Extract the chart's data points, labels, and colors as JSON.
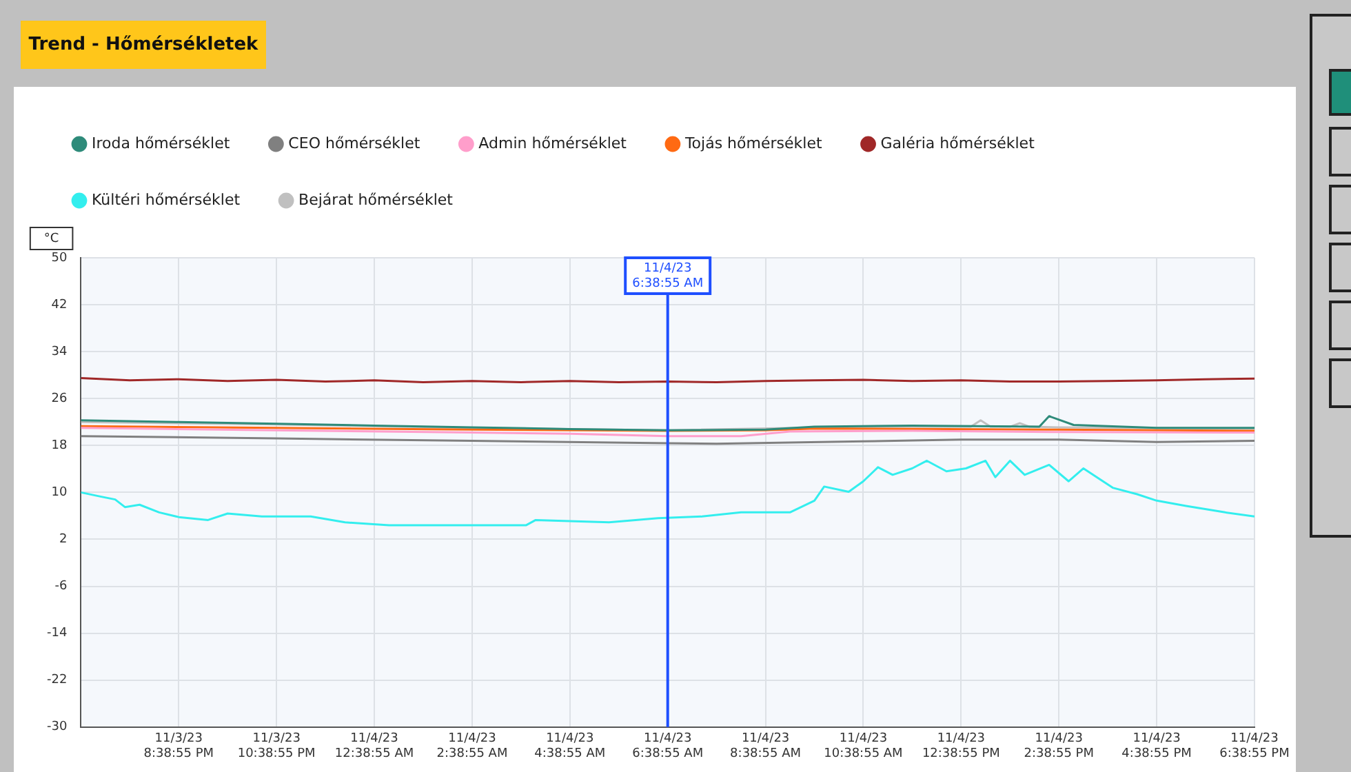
{
  "chart_data": {
    "type": "line",
    "title": "Trend - Hőmérsékletek",
    "ylabel": "°C",
    "xlim": [
      "--11-03T18:38",
      "--11-04T18:38"
    ],
    "xticks": [
      {
        "value": "--11-03T20:38",
        "label": "11/3/23 8:38:55 PM"
      },
      {
        "value": "--11-03T22:38",
        "label": "11/3/23 10:38:55 PM"
      },
      {
        "value": "--11-04T00:38",
        "label": "11/4/23 12:38:55 AM"
      },
      {
        "value": "--11-04T02:38",
        "label": "11/4/23 2:38:55 AM"
      },
      {
        "value": "--11-04T04:38",
        "label": "11/4/23 4:38:55 AM"
      },
      {
        "value": "--11-04T06:38",
        "label": "11/4/23 6:38:55 AM"
      },
      {
        "value": "--11-04T08:38",
        "label": "11/4/23 8:38:55 AM"
      },
      {
        "value": "--11-04T10:38",
        "label": "11/4/23 10:38:55 AM"
      },
      {
        "value": "--11-04T12:38",
        "label": "11/4/23 12:38:55 PM"
      },
      {
        "value": "--11-04T14:38",
        "label": "11/4/23 2:38:55 PM"
      },
      {
        "value": "--11-04T16:38",
        "label": "11/4/23 4:38:55 PM"
      },
      {
        "value": "--11-04T18:38",
        "label": "11/4/23 6:38:55 PM"
      }
    ],
    "ylim": [
      -30,
      50
    ],
    "yticks": [
      -30,
      -22,
      -14,
      -6,
      2,
      10,
      18,
      26,
      34,
      42,
      50
    ],
    "grid": true,
    "legend": "top left",
    "ref_lines": [
      {
        "axis": "x",
        "value": "--11-04T06:38",
        "label": "11/4/23 6:38:55 AM",
        "color": "#1f4fff"
      }
    ],
    "series": [
      {
        "name": "Iroda hőmérséklet",
        "color": "#2e8b7a",
        "x": [
          "--11-03T18:38",
          "--11-03T20:38",
          "--11-03T22:38",
          "--11-04T00:38",
          "--11-04T02:38",
          "--11-04T04:38",
          "--11-04T06:38",
          "--11-04T08:38",
          "--11-04T09:38",
          "--11-04T11:38",
          "--11-04T14:14",
          "--11-04T14:26",
          "--11-04T14:56",
          "--11-04T16:38",
          "--11-04T18:38"
        ],
        "values": [
          22.3,
          22,
          21.7,
          21.4,
          21.1,
          20.8,
          20.6,
          20.7,
          21.2,
          21.4,
          21.2,
          23,
          21.5,
          21,
          21
        ]
      },
      {
        "name": "CEO hőmérséklet",
        "color": "#808080",
        "x": [
          "--11-03T18:38",
          "--11-03T22:38",
          "--11-04T02:38",
          "--11-04T06:38",
          "--11-04T07:38",
          "--11-04T10:38",
          "--11-04T12:38",
          "--11-04T14:38",
          "--11-04T16:38",
          "--11-04T18:38"
        ],
        "values": [
          19.6,
          19.2,
          18.8,
          18.4,
          18.3,
          18.7,
          19,
          19,
          18.6,
          18.8
        ]
      },
      {
        "name": "Admin hőmérséklet",
        "color": "#ff9ecb",
        "x": [
          "--11-03T18:38",
          "--11-03T22:38",
          "--11-04T02:38",
          "--11-04T04:38",
          "--11-04T06:38",
          "--11-04T08:08",
          "--11-04T09:08",
          "--11-04T11:38",
          "--11-04T14:38",
          "--11-04T18:38"
        ],
        "values": [
          21,
          20.6,
          20.2,
          20,
          19.6,
          19.6,
          20.4,
          20.5,
          20.3,
          20.2
        ]
      },
      {
        "name": "Tojás hőmérséklet",
        "color": "#ff6a13",
        "x": [
          "--11-03T18:38",
          "--11-03T22:38",
          "--11-04T02:38",
          "--11-04T06:38",
          "--11-04T08:38",
          "--11-04T09:38",
          "--11-04T14:38",
          "--11-04T18:38"
        ],
        "values": [
          21.3,
          21,
          20.7,
          20.5,
          20.6,
          20.9,
          20.7,
          20.5
        ]
      },
      {
        "name": "Galéria hőmérséklet",
        "color": "#a02828",
        "x": [
          "--11-03T18:38",
          "--11-03T19:38",
          "--11-03T20:38",
          "--11-03T21:38",
          "--11-03T22:38",
          "--11-03T23:38",
          "--11-04T00:38",
          "--11-04T01:38",
          "--11-04T02:38",
          "--11-04T03:38",
          "--11-04T04:38",
          "--11-04T05:38",
          "--11-04T06:38",
          "--11-04T07:38",
          "--11-04T08:38",
          "--11-04T09:38",
          "--11-04T10:38",
          "--11-04T11:38",
          "--11-04T12:38",
          "--11-04T13:38",
          "--11-04T14:38",
          "--11-04T15:38",
          "--11-04T16:38",
          "--11-04T17:38",
          "--11-04T18:38"
        ],
        "values": [
          29.5,
          29.1,
          29.3,
          29.0,
          29.2,
          28.9,
          29.1,
          28.8,
          29.0,
          28.8,
          29.0,
          28.8,
          28.9,
          28.8,
          29.0,
          29.1,
          29.2,
          29.0,
          29.1,
          28.9,
          28.9,
          29.0,
          29.1,
          29.3,
          29.4
        ]
      },
      {
        "name": "Kültéri hőmérséklet",
        "color": "#33eeee",
        "x": [
          "--11-03T18:38",
          "--11-03T19:02",
          "--11-03T19:20",
          "--11-03T19:32",
          "--11-03T19:50",
          "--11-03T20:14",
          "--11-03T20:38",
          "--11-03T21:14",
          "--11-03T21:38",
          "--11-03T22:20",
          "--11-03T23:20",
          "--11-04T00:02",
          "--11-04T00:56",
          "--11-04T03:44",
          "--11-04T03:56",
          "--11-04T05:26",
          "--11-04T06:26",
          "--11-04T07:20",
          "--11-04T08:08",
          "--11-04T09:08",
          "--11-04T09:38",
          "--11-04T09:50",
          "--11-04T10:20",
          "--11-04T10:38",
          "--11-04T10:56",
          "--11-04T11:14",
          "--11-04T11:38",
          "--11-04T11:56",
          "--11-04T12:20",
          "--11-04T12:44",
          "--11-04T13:08",
          "--11-04T13:20",
          "--11-04T13:38",
          "--11-04T13:56",
          "--11-04T14:26",
          "--11-04T14:50",
          "--11-04T15:08",
          "--11-04T15:44",
          "--11-04T16:14",
          "--11-04T16:38",
          "--11-04T17:14",
          "--11-04T18:02",
          "--11-04T18:38"
        ],
        "values": [
          10.0,
          9.3,
          8.8,
          7.5,
          7.9,
          6.6,
          5.8,
          5.3,
          6.4,
          5.9,
          5.9,
          4.9,
          4.4,
          4.4,
          5.3,
          4.9,
          5.6,
          5.9,
          6.6,
          6.6,
          8.6,
          11.0,
          10.1,
          11.9,
          14.3,
          13.0,
          14.1,
          15.4,
          13.6,
          14.1,
          15.4,
          12.6,
          15.4,
          13.0,
          14.7,
          11.9,
          14.1,
          10.8,
          9.7,
          8.6,
          7.7,
          6.6,
          5.9
        ]
      },
      {
        "name": "Bejárat hőmérséklet",
        "color": "#c0c0c0",
        "x": [
          "--11-03T18:38",
          "--11-03T22:38",
          "--11-04T02:38",
          "--11-04T06:38",
          "--11-04T10:38",
          "--11-04T12:50",
          "--11-04T13:02",
          "--11-04T13:14",
          "--11-04T13:38",
          "--11-04T13:50",
          "--11-04T14:02",
          "--11-04T14:38",
          "--11-04T18:38"
        ],
        "values": [
          22,
          21.6,
          21,
          20.6,
          21.2,
          21.2,
          22.3,
          21.2,
          21.2,
          21.8,
          21.2,
          21.1,
          20.9
        ]
      }
    ]
  }
}
